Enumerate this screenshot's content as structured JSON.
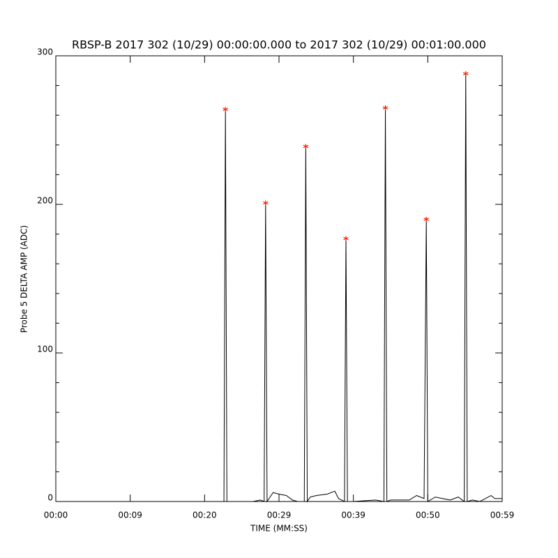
{
  "chart_data": {
    "type": "line",
    "title": "RBSP-B 2017 302 (10/29) 00:00:00.000 to 2017 302 (10/29) 00:01:00.000",
    "x_label": "TIME (MM:SS)",
    "y_label": "Probe 5 DELTA AMP (ADC)",
    "xlim": [
      0,
      60
    ],
    "ylim": [
      0,
      300
    ],
    "xticks": [
      {
        "value": 0,
        "label": "00:00"
      },
      {
        "value": 10,
        "label": "00:09"
      },
      {
        "value": 20,
        "label": "00:20"
      },
      {
        "value": 30,
        "label": "00:29"
      },
      {
        "value": 40,
        "label": "00:39"
      },
      {
        "value": 50,
        "label": "00:50"
      },
      {
        "value": 60,
        "label": "00:59"
      }
    ],
    "yticks": [
      0,
      100,
      200,
      300
    ],
    "yminor": 5,
    "line": {
      "color": "#000000",
      "x": [
        0,
        22.6,
        22.8,
        23.0,
        26.5,
        27.5,
        28.0,
        28.2,
        28.4,
        28.8,
        29.2,
        30,
        31,
        31.8,
        32.5,
        33.4,
        33.6,
        33.8,
        34.2,
        35,
        36.5,
        37.5,
        38,
        38.8,
        39.0,
        39.2,
        40,
        43.0,
        44.1,
        44.3,
        44.5,
        45,
        47.5,
        48.5,
        49.5,
        49.8,
        50.0,
        51,
        52,
        53,
        54.1,
        54.9,
        55.1,
        55.3,
        56,
        57,
        58.5,
        59,
        60
      ],
      "values": [
        0,
        0,
        264,
        0,
        0,
        1,
        0,
        201,
        0,
        3,
        6,
        5,
        4,
        1,
        0,
        0,
        239,
        0,
        3,
        4,
        5,
        7,
        2,
        0,
        177,
        0,
        0,
        1,
        0,
        265,
        0,
        1,
        1,
        4,
        2,
        190,
        0,
        3,
        2,
        1,
        3,
        0,
        288,
        0,
        1,
        0,
        4,
        2,
        2
      ]
    },
    "peaks": {
      "color": "#ff2200",
      "marker": "asterisk",
      "x": [
        22.8,
        28.2,
        33.6,
        39.0,
        44.3,
        49.8,
        55.1
      ],
      "values": [
        264,
        201,
        239,
        177,
        265,
        190,
        288
      ]
    }
  }
}
